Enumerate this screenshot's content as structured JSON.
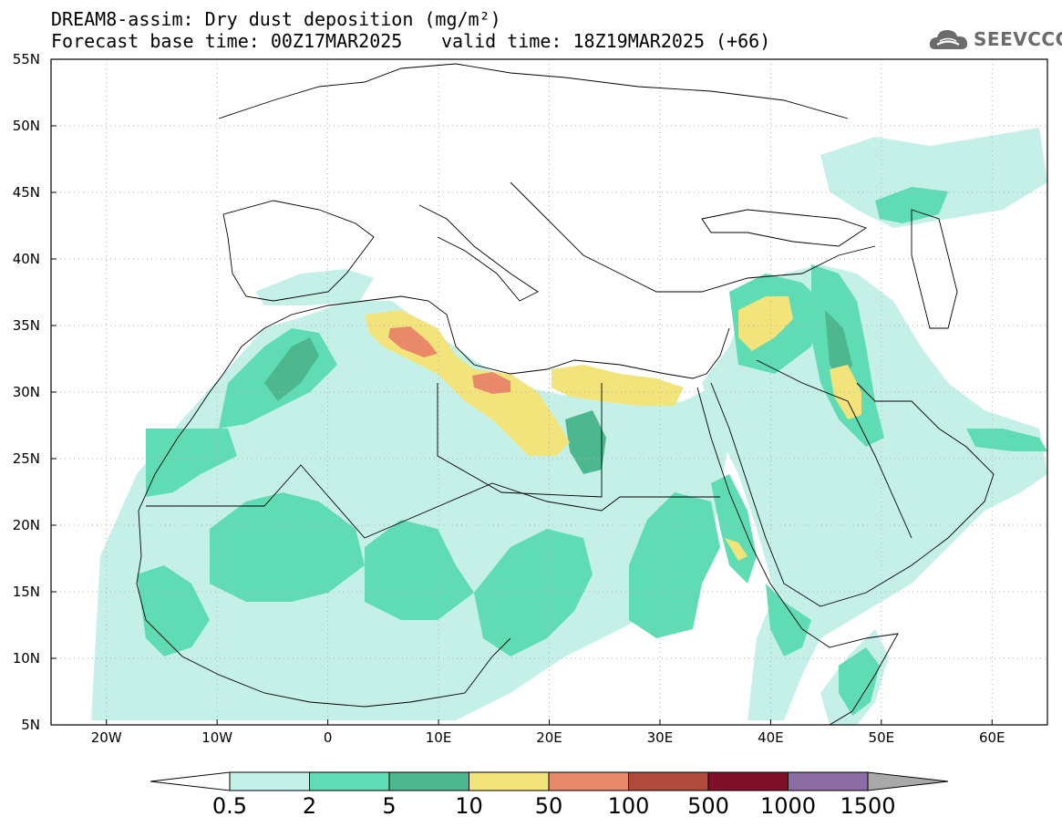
{
  "header": {
    "title_line1": "DREAM8-assim: Dry dust deposition (mg/m²)",
    "title_line2": "Forecast base time: 00Z17MAR2025",
    "valid_time": "valid time: 18Z19MAR2025 (+66)"
  },
  "logo": {
    "text": "SEEVCCC",
    "icon": "cloud-logo-icon"
  },
  "map": {
    "projection": "lat-lon",
    "lon_range": [
      -25,
      65
    ],
    "lat_range": [
      5,
      55
    ],
    "lat_ticks": [
      "5N",
      "10N",
      "15N",
      "20N",
      "25N",
      "30N",
      "35N",
      "40N",
      "45N",
      "50N",
      "55N"
    ],
    "lon_ticks": [
      "20W",
      "10W",
      "0",
      "10E",
      "20E",
      "30E",
      "40E",
      "50E",
      "60E"
    ],
    "gridlines": "dotted"
  },
  "colorbar": {
    "labels": [
      "0.5",
      "2",
      "5",
      "10",
      "50",
      "100",
      "500",
      "1000",
      "1500"
    ],
    "colors": [
      "#c5f0e8",
      "#5fdcb3",
      "#4db88f",
      "#f2e47a",
      "#e8896a",
      "#b04a3c",
      "#7f0f2a",
      "#8b6ca3",
      "#a9a9a9"
    ],
    "extends": "both"
  }
}
